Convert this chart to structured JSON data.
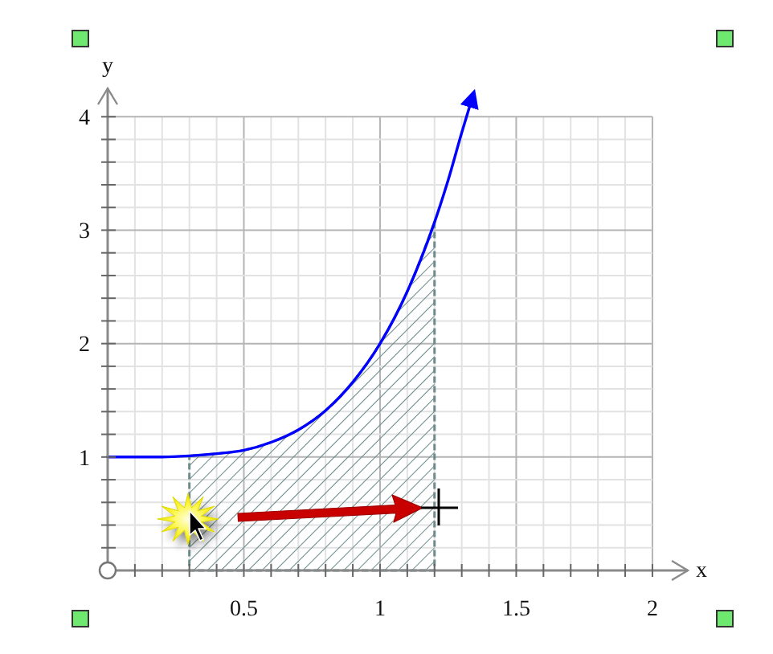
{
  "chart_data": {
    "type": "line",
    "xlabel": "x",
    "ylabel": "y",
    "xlim": [
      0,
      2.13
    ],
    "ylim": [
      0,
      4.25
    ],
    "xticks": [
      {
        "value": 0.1,
        "label": null
      },
      {
        "value": 0.2,
        "label": null
      },
      {
        "value": 0.3,
        "label": null
      },
      {
        "value": 0.4,
        "label": null
      },
      0.5,
      {
        "value": 0.6,
        "label": null
      },
      {
        "value": 0.7,
        "label": null
      },
      {
        "value": 0.8,
        "label": null
      },
      {
        "value": 0.9,
        "label": null
      },
      1,
      {
        "value": 1.1,
        "label": null
      },
      {
        "value": 1.2,
        "label": null
      },
      {
        "value": 1.3,
        "label": null
      },
      {
        "value": 1.4,
        "label": null
      },
      1.5,
      {
        "value": 1.6,
        "label": null
      },
      {
        "value": 1.7,
        "label": null
      },
      {
        "value": 1.8,
        "label": null
      },
      {
        "value": 1.9,
        "label": null
      },
      2
    ],
    "yticks": [
      {
        "value": 0.2,
        "label": null
      },
      {
        "value": 0.4,
        "label": null
      },
      {
        "value": 0.6,
        "label": null
      },
      {
        "value": 0.8,
        "label": null
      },
      1,
      {
        "value": 1.2,
        "label": null
      },
      {
        "value": 1.4,
        "label": null
      },
      {
        "value": 1.6,
        "label": null
      },
      {
        "value": 1.8,
        "label": null
      },
      2,
      {
        "value": 2.2,
        "label": null
      },
      {
        "value": 2.4,
        "label": null
      },
      {
        "value": 2.6,
        "label": null
      },
      {
        "value": 2.8,
        "label": null
      },
      3,
      {
        "value": 3.2,
        "label": null
      },
      {
        "value": 3.4,
        "label": null
      },
      {
        "value": 3.6,
        "label": null
      },
      {
        "value": 3.8,
        "label": null
      },
      4
    ],
    "grid": true,
    "series": [
      {
        "type": "area",
        "color": "#6e8b8b",
        "x": [
          0.3,
          0.4,
          0.5,
          0.6,
          0.7,
          0.8,
          0.9,
          1.0,
          1.1,
          1.2
        ],
        "values": [
          1.01,
          1.03,
          1.06,
          1.13,
          1.24,
          1.41,
          1.66,
          2.0,
          2.46,
          3.07
        ]
      },
      {
        "color": "#0000ff",
        "x": [
          0,
          0.1,
          0.2,
          0.3,
          0.4,
          0.5,
          0.6,
          0.7,
          0.8,
          0.9,
          1.0,
          1.1,
          1.2,
          1.25,
          1.3,
          1.33
        ],
        "values": [
          1,
          1,
          1,
          1.01,
          1.03,
          1.06,
          1.13,
          1.24,
          1.41,
          1.66,
          2.0,
          2.46,
          3.07,
          3.44,
          3.86,
          4.1
        ]
      }
    ]
  }
}
